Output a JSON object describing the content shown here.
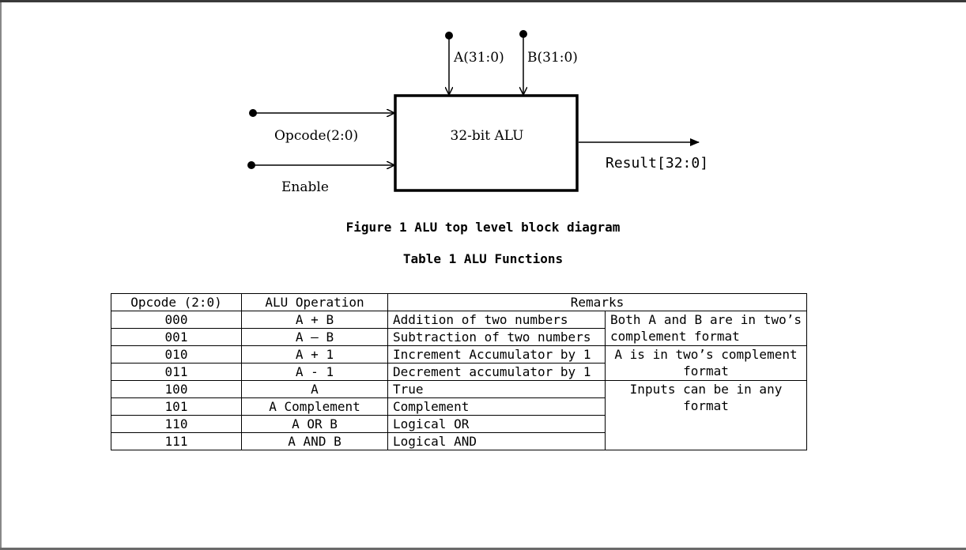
{
  "diagram": {
    "input_a": "A(31:0)",
    "input_b": "B(31:0)",
    "opcode": "Opcode(2:0)",
    "enable": "Enable",
    "block": "32-bit ALU",
    "result": "Result[32:0]"
  },
  "figure_caption": "Figure 1 ALU top level block diagram",
  "table_caption": "Table 1 ALU Functions",
  "table": {
    "headers": [
      "Opcode (2:0)",
      "ALU Operation",
      "Remarks"
    ],
    "rows": [
      {
        "opcode": "000",
        "operation": "A + B",
        "remark": "Addition of two numbers"
      },
      {
        "opcode": "001",
        "operation": "A – B",
        "remark": "Subtraction of two numbers"
      },
      {
        "opcode": "010",
        "operation": "A + 1",
        "remark": "Increment Accumulator by 1"
      },
      {
        "opcode": "011",
        "operation": "A - 1",
        "remark": "Decrement accumulator by 1"
      },
      {
        "opcode": "100",
        "operation": "A",
        "remark": "True"
      },
      {
        "opcode": "101",
        "operation": "A Complement",
        "remark": "Complement"
      },
      {
        "opcode": "110",
        "operation": "A OR B",
        "remark": "Logical OR"
      },
      {
        "opcode": "111",
        "operation": "A AND B",
        "remark": "Logical AND"
      }
    ],
    "group_remarks": [
      "Both A and B are in two’s complement format",
      "A is in two’s complement format",
      "Inputs can be in any format"
    ]
  }
}
